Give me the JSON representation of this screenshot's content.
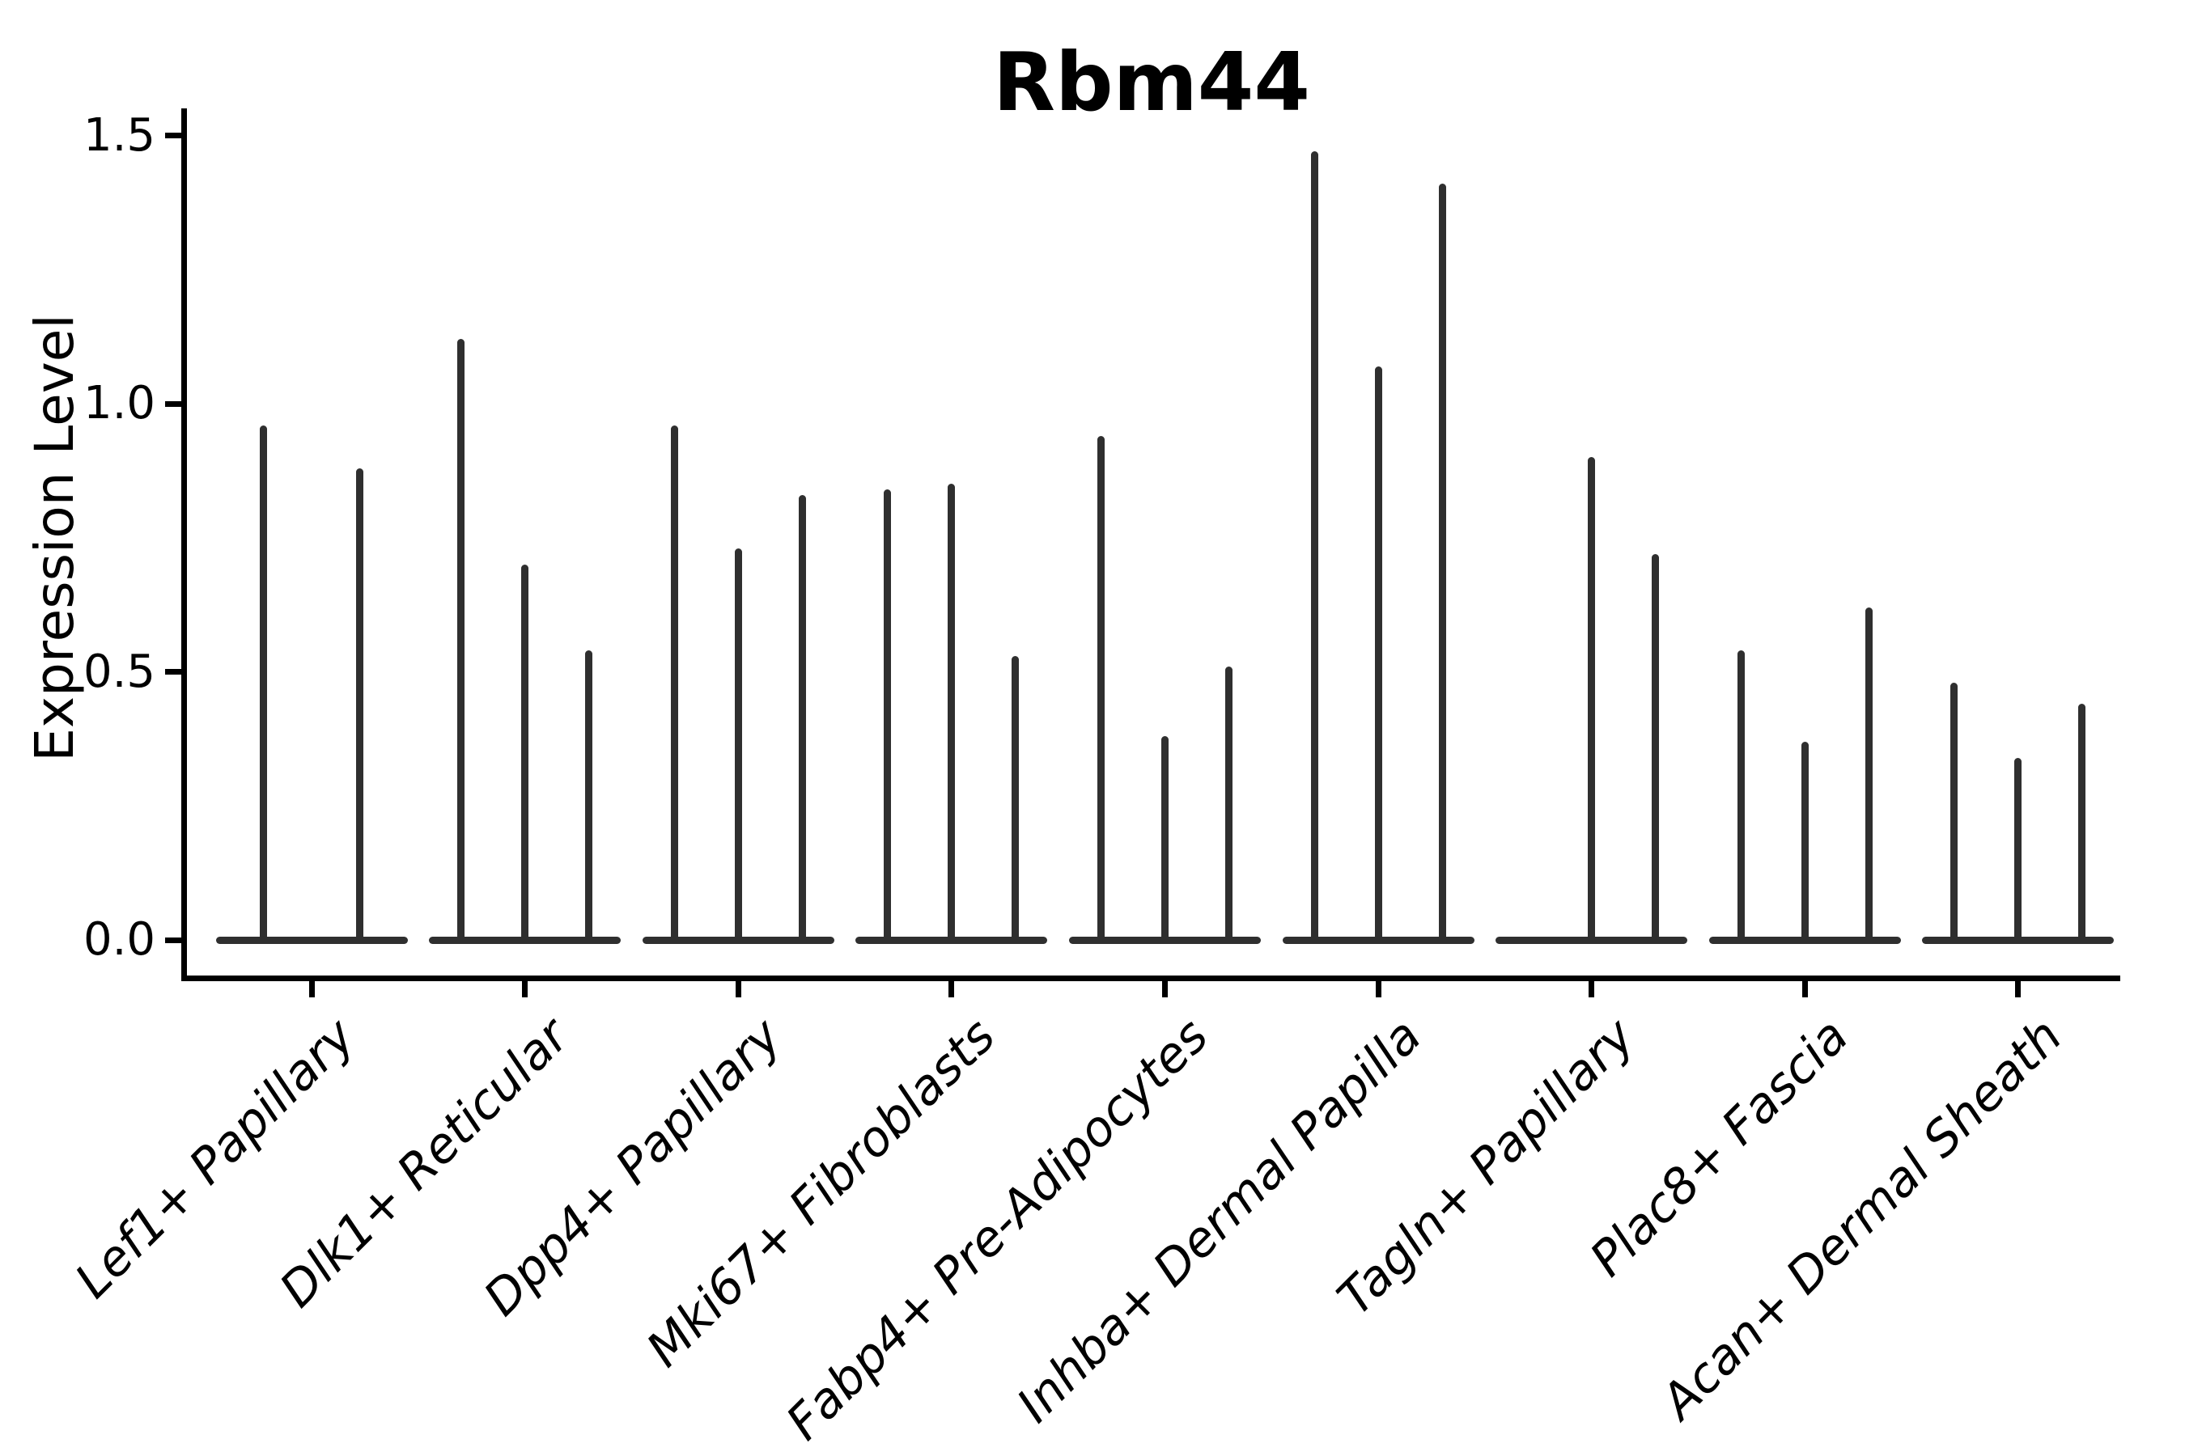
{
  "figure": {
    "title": "Rbm44",
    "ylabel": "Expression Level",
    "xlabel": ""
  },
  "chart_data": {
    "type": "violin",
    "title": "Rbm44",
    "xlabel": "",
    "ylabel": "Expression Level",
    "ylim": [
      0,
      1.55
    ],
    "yticks": [
      0.0,
      0.5,
      1.0,
      1.5
    ],
    "ytick_labels": [
      "0.0",
      "0.5",
      "1.0",
      "1.5"
    ],
    "grid": false,
    "legend": "none",
    "description": "Violin plot of Rbm44 expression; each category shows 2-3 very thin violins (spikes) rising from a flattened baseline at 0. Spike heights are the maximum expression level per violin; null means a violin slot with no spike.",
    "groups": [
      {
        "label": "Lef1+ Papillary",
        "spike_heights": [
          0.96,
          0.88
        ]
      },
      {
        "label": "Dlk1+ Reticular",
        "spike_heights": [
          1.12,
          0.7,
          0.54
        ]
      },
      {
        "label": "Dpp4+ Papillary",
        "spike_heights": [
          0.96,
          0.73,
          0.83
        ]
      },
      {
        "label": "Mki67+ Fibroblasts",
        "spike_heights": [
          0.84,
          0.85,
          0.53
        ]
      },
      {
        "label": "Fabp4+ Pre-Adipocytes",
        "spike_heights": [
          0.94,
          0.38,
          0.51
        ]
      },
      {
        "label": "Inhba+ Dermal Papilla",
        "spike_heights": [
          1.47,
          1.07,
          1.41
        ]
      },
      {
        "label": "Tagln+ Papillary",
        "spike_heights": [
          null,
          0.9,
          0.72
        ]
      },
      {
        "label": "Plac8+ Fascia",
        "spike_heights": [
          0.54,
          0.37,
          0.62
        ]
      },
      {
        "label": "Acan+ Dermal Sheath",
        "spike_heights": [
          0.48,
          0.34,
          0.44
        ]
      }
    ]
  }
}
